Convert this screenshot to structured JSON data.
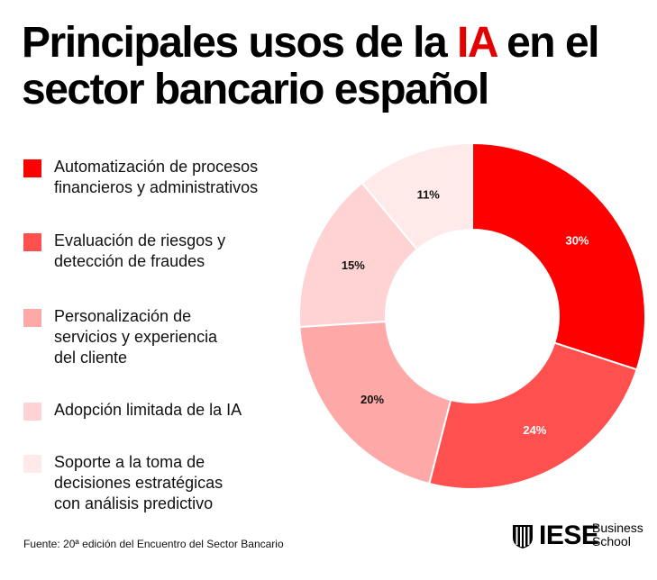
{
  "title": {
    "part1": "Principales usos de la ",
    "highlight": "IA",
    "part2": " en el sector bancario español"
  },
  "colors": {
    "highlight": "#e20000",
    "slices": [
      "#ff0000",
      "#ff5050",
      "#ffa8a8",
      "#ffd3d3",
      "#ffe9e9"
    ],
    "label_dark": "#111111",
    "label_light": "#ffffff"
  },
  "chart_data": {
    "type": "pie",
    "donut": true,
    "start_angle_deg": 0,
    "direction": "clockwise",
    "slices": [
      {
        "label": "Automatización de procesos financieros y administrativos",
        "value": 30,
        "display": "30%"
      },
      {
        "label": "Evaluación de riesgos y detección de fraudes",
        "value": 24,
        "display": "24%"
      },
      {
        "label": "Personalización de servicios y experiencia del cliente",
        "value": 20,
        "display": "20%"
      },
      {
        "label": "Adopción limitada de la IA",
        "value": 15,
        "display": "15%"
      },
      {
        "label": "Soporte a la toma de decisiones estratégicas con análisis predictivo",
        "value": 11,
        "display": "11%"
      }
    ],
    "legend_position": "left"
  },
  "legend": {
    "items": [
      [
        "Automatización de procesos",
        "financieros y administrativos"
      ],
      [
        "Evaluación de riesgos y",
        "detección de fraudes"
      ],
      [
        "Personalización de",
        "servicios y experiencia",
        "del cliente"
      ],
      [
        "Adopción limitada de la IA"
      ],
      [
        "Soporte a la toma de",
        "decisiones estratégicas",
        "con análisis predictivo"
      ]
    ]
  },
  "source": "Fuente: 20ª edición del Encuentro del Sector Bancario",
  "logo": {
    "main": "IESE",
    "sub1": "Business",
    "sub2": "School"
  }
}
